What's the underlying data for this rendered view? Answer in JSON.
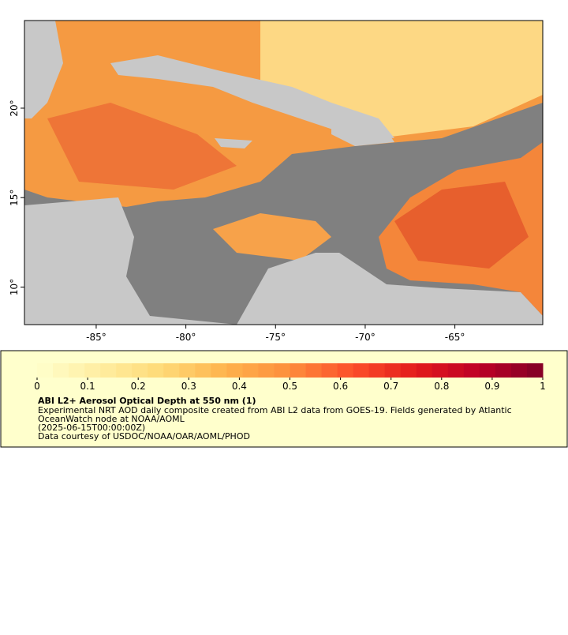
{
  "map": {
    "xlim": [
      -89,
      -60.1
    ],
    "ylim": [
      7.9,
      24.9
    ],
    "xticks": [
      {
        "value": -85,
        "label": "-85°"
      },
      {
        "value": -80,
        "label": "-80°"
      },
      {
        "value": -75,
        "label": "-75°"
      },
      {
        "value": -70,
        "label": "-70°"
      },
      {
        "value": -65,
        "label": "-65°"
      }
    ],
    "yticks": [
      {
        "value": 10,
        "label": "10°"
      },
      {
        "value": 15,
        "label": "15°"
      },
      {
        "value": 20,
        "label": "20°"
      }
    ]
  },
  "legend": {
    "colorbar": {
      "range": [
        0,
        1
      ],
      "ticks": [
        0,
        0.1,
        0.2,
        0.3,
        0.4,
        0.5,
        0.6,
        0.7,
        0.8,
        0.9,
        1
      ]
    },
    "title": "ABI L2+ Aerosol Optical Depth at 550 nm (1)",
    "description": [
      "Experimental NRT AOD daily composite created from ABI L2 data from GOES-19. Fields generated by Atlantic",
      "OceanWatch node at NOAA/AOML"
    ],
    "date": "(2025-06-15T00:00:00Z)",
    "credit": "Data courtesy of USDOC/NOAA/OAR/AOML/PHOD"
  }
}
